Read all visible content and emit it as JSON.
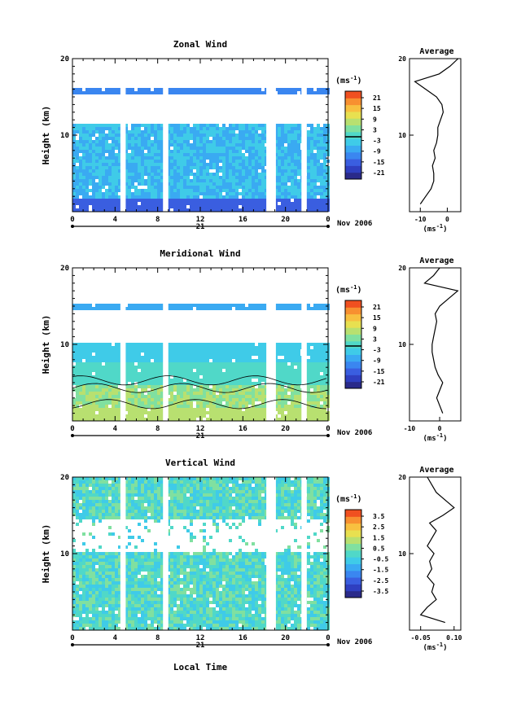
{
  "page": {
    "xlabel": "Local Time"
  },
  "colorbar_colors": [
    "#2a2a8a",
    "#2f3fc0",
    "#3a5ee0",
    "#3a86f0",
    "#3aaaf2",
    "#3fcbe8",
    "#50d8c8",
    "#80e0a0",
    "#b8e070",
    "#e8e050",
    "#f8c040",
    "#f89030",
    "#f05020"
  ],
  "chart_data": [
    {
      "type": "heatmap",
      "title": "Zonal Wind",
      "ylabel": "Height (km)",
      "ylim": [
        0,
        20
      ],
      "yticks": [
        10,
        20
      ],
      "xlim": [
        0,
        24
      ],
      "xticks": [
        "0",
        "4",
        "8",
        "12",
        "16",
        "20",
        "0"
      ],
      "date_label": "21",
      "month_label": "Nov 2006",
      "colorbar": {
        "unit": "(ms",
        "unit_exp": "-1",
        "unit_close": ")",
        "ticks": [
          "21",
          "15",
          "9",
          "3",
          "-3",
          "-9",
          "-15",
          "-21"
        ],
        "zero_line": 0
      },
      "data_gaps_hours": [
        [
          4.5,
          5.0
        ],
        [
          8.5,
          9.0
        ],
        [
          18.2,
          19.1
        ],
        [
          21.5,
          22.0
        ]
      ],
      "profile": {
        "title": "Average",
        "xlabel": "(ms",
        "xlabel_exp": "-1",
        "xlabel_close": ")",
        "xlim": [
          -14,
          5
        ],
        "xticks": [
          "-10",
          "0"
        ],
        "xtick_values": [
          -10,
          0
        ],
        "yticks": [
          10,
          20
        ],
        "height_km": [
          1,
          2,
          3,
          4,
          5,
          6,
          7,
          8,
          9,
          10,
          11,
          12,
          13,
          14,
          15,
          16,
          17,
          18,
          19,
          20
        ],
        "values": [
          -10,
          -8,
          -6,
          -5,
          -5,
          -5.5,
          -4.5,
          -5,
          -4,
          -3.5,
          -3.5,
          -2.5,
          -1.5,
          -2,
          -4,
          -8,
          -12,
          -3,
          1,
          4
        ]
      }
    },
    {
      "type": "heatmap",
      "title": "Meridional Wind",
      "ylabel": "Height (km)",
      "ylim": [
        0,
        20
      ],
      "yticks": [
        10,
        20
      ],
      "xlim": [
        0,
        24
      ],
      "xticks": [
        "0",
        "4",
        "8",
        "12",
        "16",
        "20",
        "0"
      ],
      "date_label": "21",
      "month_label": "Nov 2006",
      "colorbar": {
        "unit": "(ms",
        "unit_exp": "-1",
        "unit_close": ")",
        "ticks": [
          "21",
          "15",
          "9",
          "3",
          "-3",
          "-9",
          "-15",
          "-21"
        ],
        "zero_line": 0
      },
      "data_gaps_hours": [
        [
          4.5,
          5.0
        ],
        [
          8.5,
          9.0
        ],
        [
          18.2,
          19.1
        ],
        [
          21.5,
          22.0
        ]
      ],
      "profile": {
        "title": "Average",
        "xlabel": "(ms",
        "xlabel_exp": "-1",
        "xlabel_close": ")",
        "xlim": [
          -10,
          7
        ],
        "xticks": [
          "-10",
          "0"
        ],
        "xtick_values": [
          -10,
          0
        ],
        "yticks": [
          10,
          20
        ],
        "height_km": [
          1,
          2,
          3,
          4,
          5,
          6,
          7,
          8,
          9,
          10,
          11,
          12,
          13,
          14,
          15,
          16,
          17,
          18,
          19,
          20
        ],
        "values": [
          1,
          0,
          -1,
          0,
          1,
          -0.5,
          -1.5,
          -2,
          -2.5,
          -2.5,
          -2,
          -1.5,
          -1,
          -1.5,
          0,
          3,
          6,
          -5,
          -2,
          0
        ]
      }
    },
    {
      "type": "heatmap",
      "title": "Vertical Wind",
      "ylabel": "Height (km)",
      "ylim": [
        0,
        20
      ],
      "yticks": [
        10,
        20
      ],
      "xlim": [
        0,
        24
      ],
      "xticks": [
        "0",
        "4",
        "8",
        "12",
        "16",
        "20",
        "0"
      ],
      "date_label": "21",
      "month_label": "Nov 2006",
      "colorbar": {
        "unit": "(ms",
        "unit_exp": "-1",
        "unit_close": ")",
        "ticks": [
          "3.5",
          "2.5",
          "1.5",
          "0.5",
          "-0.5",
          "-1.5",
          "-2.5",
          "-3.5"
        ],
        "zero_line": null
      },
      "data_gaps_hours": [
        [
          4.5,
          5.0
        ],
        [
          8.5,
          9.0
        ],
        [
          18.2,
          19.1
        ],
        [
          21.5,
          22.0
        ]
      ],
      "profile": {
        "title": "Average",
        "xlabel": "(ms",
        "xlabel_exp": "-1",
        "xlabel_close": ")",
        "xlim": [
          -0.1,
          0.13
        ],
        "xticks": [
          "-0.05",
          "0.10"
        ],
        "xtick_values": [
          -0.05,
          0.1
        ],
        "yticks": [
          10,
          20
        ],
        "height_km": [
          1,
          2,
          3,
          4,
          5,
          6,
          7,
          8,
          9,
          10,
          11,
          12,
          13,
          14,
          15,
          16,
          17,
          18,
          19,
          20
        ],
        "values": [
          0.06,
          -0.05,
          -0.02,
          0.02,
          0.0,
          0.01,
          -0.02,
          0.0,
          -0.01,
          0.01,
          -0.02,
          0.0,
          0.02,
          -0.01,
          0.05,
          0.1,
          0.06,
          0.02,
          0.0,
          -0.02
        ]
      }
    }
  ]
}
